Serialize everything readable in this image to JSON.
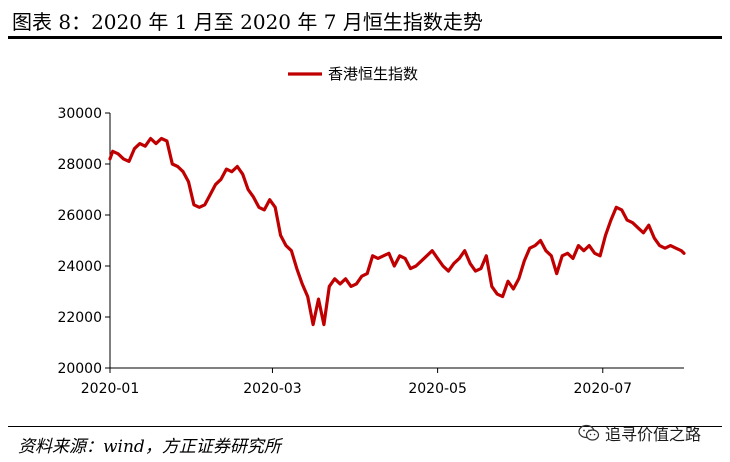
{
  "figure": {
    "title": "图表 8：2020 年 1 月至 2020 年 7 月恒生指数走势",
    "source": "资料来源：wind，方正证券研究所",
    "watermark": "追寻价值之路",
    "watermark_icon": "wechat-icon"
  },
  "chart_data": {
    "type": "line",
    "title": "",
    "xlabel": "",
    "ylabel": "",
    "ylim": [
      20000,
      30000
    ],
    "yticks": [
      20000,
      22000,
      24000,
      26000,
      28000,
      30000
    ],
    "ytick_labels": [
      "20000",
      "22000",
      "24000",
      "26000",
      "28000",
      "30000"
    ],
    "xlim": [
      "2020-01-01",
      "2020-07-31"
    ],
    "xticks": [
      "2020-01-01",
      "2020-03-01",
      "2020-05-01",
      "2020-07-01"
    ],
    "xtick_labels": [
      "2020-01",
      "2020-03",
      "2020-05",
      "2020-07"
    ],
    "grid": false,
    "legend": "top-center",
    "colors": {
      "series": "#c00000",
      "axis": "#000000"
    },
    "series": [
      {
        "name": "香港恒生指数",
        "x": [
          "2020-01-01",
          "2020-01-02",
          "2020-01-04",
          "2020-01-06",
          "2020-01-08",
          "2020-01-10",
          "2020-01-12",
          "2020-01-14",
          "2020-01-16",
          "2020-01-18",
          "2020-01-20",
          "2020-01-22",
          "2020-01-24",
          "2020-01-26",
          "2020-01-28",
          "2020-01-30",
          "2020-02-01",
          "2020-02-03",
          "2020-02-05",
          "2020-02-07",
          "2020-02-09",
          "2020-02-11",
          "2020-02-13",
          "2020-02-15",
          "2020-02-17",
          "2020-02-19",
          "2020-02-21",
          "2020-02-23",
          "2020-02-25",
          "2020-02-27",
          "2020-02-29",
          "2020-03-02",
          "2020-03-04",
          "2020-03-06",
          "2020-03-08",
          "2020-03-10",
          "2020-03-12",
          "2020-03-14",
          "2020-03-16",
          "2020-03-18",
          "2020-03-20",
          "2020-03-22",
          "2020-03-24",
          "2020-03-26",
          "2020-03-28",
          "2020-03-30",
          "2020-04-01",
          "2020-04-03",
          "2020-04-05",
          "2020-04-07",
          "2020-04-09",
          "2020-04-11",
          "2020-04-13",
          "2020-04-15",
          "2020-04-17",
          "2020-04-19",
          "2020-04-21",
          "2020-04-23",
          "2020-04-25",
          "2020-04-27",
          "2020-04-29",
          "2020-05-01",
          "2020-05-03",
          "2020-05-05",
          "2020-05-07",
          "2020-05-09",
          "2020-05-11",
          "2020-05-13",
          "2020-05-15",
          "2020-05-17",
          "2020-05-19",
          "2020-05-21",
          "2020-05-23",
          "2020-05-25",
          "2020-05-27",
          "2020-05-29",
          "2020-05-31",
          "2020-06-02",
          "2020-06-04",
          "2020-06-06",
          "2020-06-08",
          "2020-06-10",
          "2020-06-12",
          "2020-06-14",
          "2020-06-16",
          "2020-06-18",
          "2020-06-20",
          "2020-06-22",
          "2020-06-24",
          "2020-06-26",
          "2020-06-28",
          "2020-06-30",
          "2020-07-02",
          "2020-07-04",
          "2020-07-06",
          "2020-07-08",
          "2020-07-10",
          "2020-07-12",
          "2020-07-14",
          "2020-07-16",
          "2020-07-18",
          "2020-07-20",
          "2020-07-22",
          "2020-07-24",
          "2020-07-26",
          "2020-07-28",
          "2020-07-30",
          "2020-07-31"
        ],
        "values": [
          28200,
          28500,
          28400,
          28200,
          28100,
          28600,
          28800,
          28700,
          29000,
          28800,
          29000,
          28900,
          28000,
          27900,
          27700,
          27300,
          26400,
          26300,
          26400,
          26800,
          27200,
          27400,
          27800,
          27700,
          27900,
          27600,
          27000,
          26700,
          26300,
          26200,
          26600,
          26300,
          25200,
          24800,
          24600,
          23900,
          23300,
          22800,
          21700,
          22700,
          21700,
          23200,
          23500,
          23300,
          23500,
          23200,
          23300,
          23600,
          23700,
          24400,
          24300,
          24400,
          24500,
          24000,
          24400,
          24300,
          23900,
          24000,
          24200,
          24400,
          24600,
          24300,
          24000,
          23800,
          24100,
          24300,
          24600,
          24100,
          23800,
          23900,
          24400,
          23200,
          22900,
          22800,
          23400,
          23100,
          23500,
          24200,
          24700,
          24800,
          25000,
          24600,
          24400,
          23700,
          24400,
          24500,
          24300,
          24800,
          24600,
          24800,
          24500,
          24400,
          25200,
          25800,
          26300,
          26200,
          25800,
          25700,
          25500,
          25300,
          25600,
          25100,
          24800,
          24700,
          24800,
          24700,
          24600,
          24500
        ]
      }
    ]
  }
}
